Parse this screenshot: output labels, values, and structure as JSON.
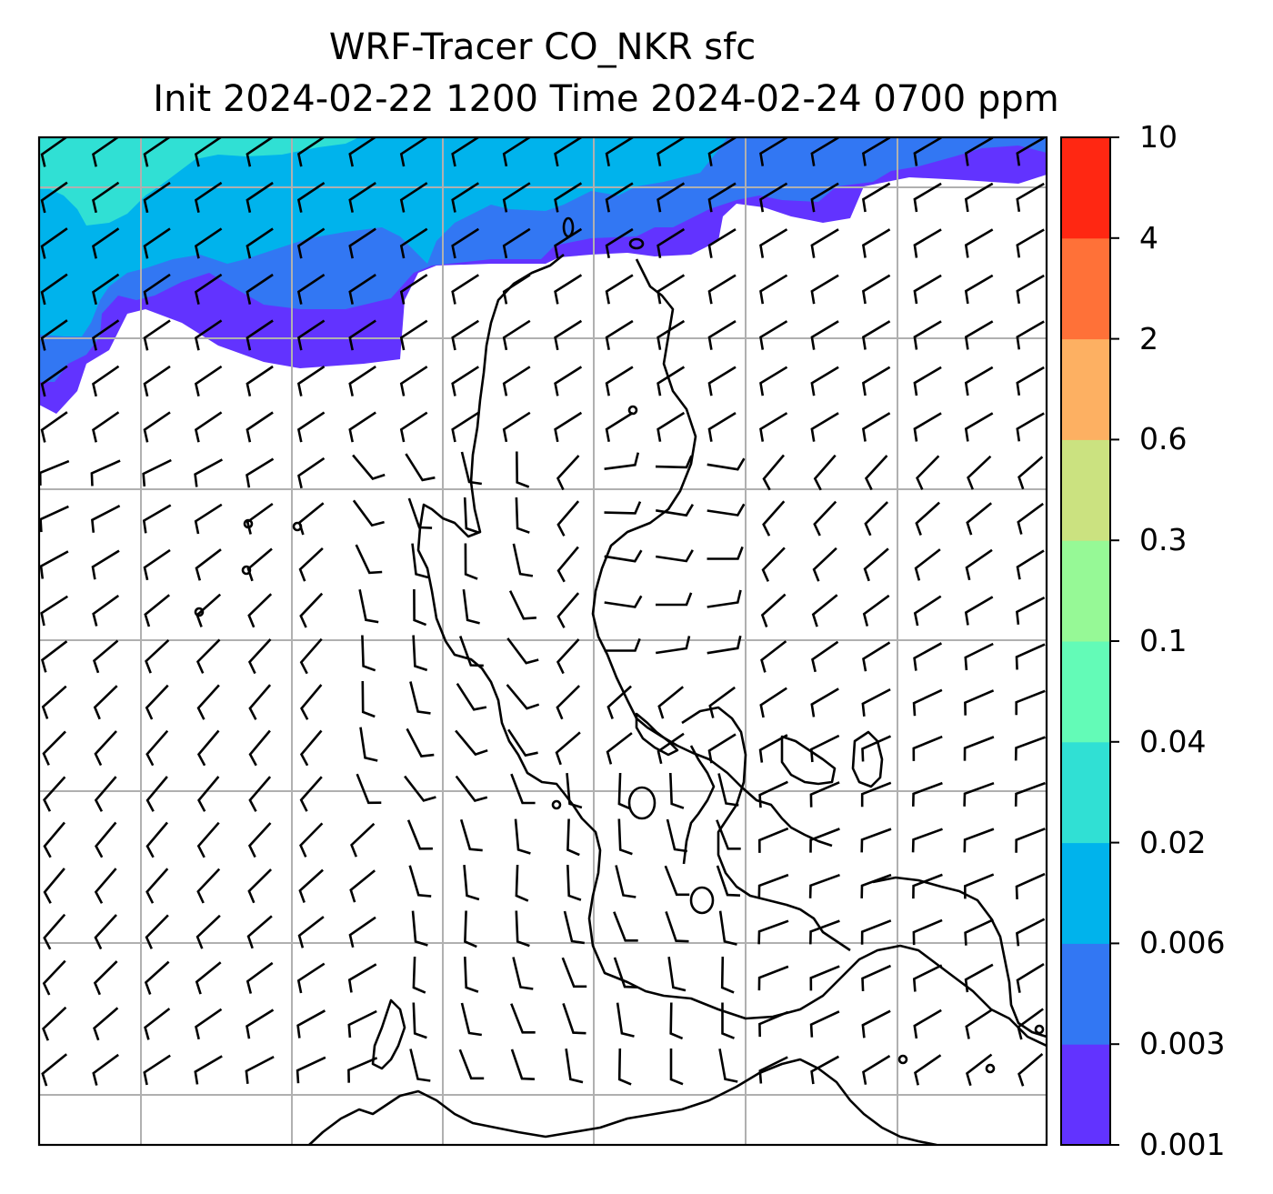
{
  "title": {
    "line1": "WRF-Tracer CO_NKR sfc",
    "line2": "Init 2024-02-22 1200 Time 2024-02-24 0700 ppm"
  },
  "colorbar": {
    "levels": [
      "0.001",
      "0.003",
      "0.006",
      "0.02",
      "0.04",
      "0.1",
      "0.3",
      "0.6",
      "2",
      "4",
      "10"
    ],
    "colors": [
      "#6233ff",
      "#3277f3",
      "#00b3ec",
      "#30e0d4",
      "#63fbb7",
      "#96f996",
      "#cbe280",
      "#fdb062",
      "#ff7138",
      "#ff2712"
    ]
  },
  "map": {
    "plume_colors": {
      "violet": "#6233ff",
      "blue": "#3277f3",
      "sky": "#00b3ec",
      "cyan": "#30e0d4"
    },
    "coastline_color": "#000000",
    "grid_color": "#b0b0b0",
    "barb_color": "#000000"
  }
}
